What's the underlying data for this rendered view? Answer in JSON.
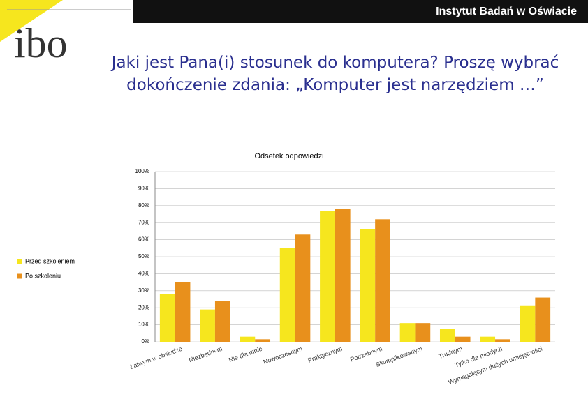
{
  "header": {
    "brand": "Instytut Badań w Oświacie",
    "logo": "ibo"
  },
  "chart_data": {
    "type": "bar",
    "title": "Jaki jest Pana(i) stosunek do komputera? Proszę wybrać dokończenie zdania: „Komputer jest narzędziem …”",
    "subtitle": "Odsetek odpowiedzi",
    "categories": [
      "Łatwym w obsłudze",
      "Niezbędnym",
      "Nie dla mnie",
      "Nowoczesnym",
      "Praktycznym",
      "Potrzebnym",
      "Skomplikowanym",
      "Trudnym",
      "Tylko dla młodych",
      "Wymagającym dużych umiejętności"
    ],
    "series": [
      {
        "name": "Przed szkoleniem",
        "color": "#f6e61e",
        "values": [
          28,
          19,
          3,
          55,
          77,
          66,
          11,
          7.5,
          3,
          21
        ]
      },
      {
        "name": "Po szkoleniu",
        "color": "#e8901c",
        "values": [
          35,
          24,
          1.5,
          63,
          78,
          72,
          11,
          3,
          1.5,
          26
        ]
      }
    ],
    "ylim": [
      0,
      100
    ],
    "yticks": [
      {
        "value": 0,
        "label": "0%"
      },
      {
        "value": 10,
        "label": "10%"
      },
      {
        "value": 20,
        "label": "20%"
      },
      {
        "value": 30,
        "label": "30%"
      },
      {
        "value": 40,
        "label": "40%"
      },
      {
        "value": 50,
        "label": "50%"
      },
      {
        "value": 60,
        "label": "60%"
      },
      {
        "value": 70,
        "label": "70%"
      },
      {
        "value": 80,
        "label": "80%"
      },
      {
        "value": 90,
        "label": "90%"
      },
      {
        "value": 100,
        "label": "100%"
      }
    ],
    "grid": true,
    "legend": "left"
  }
}
